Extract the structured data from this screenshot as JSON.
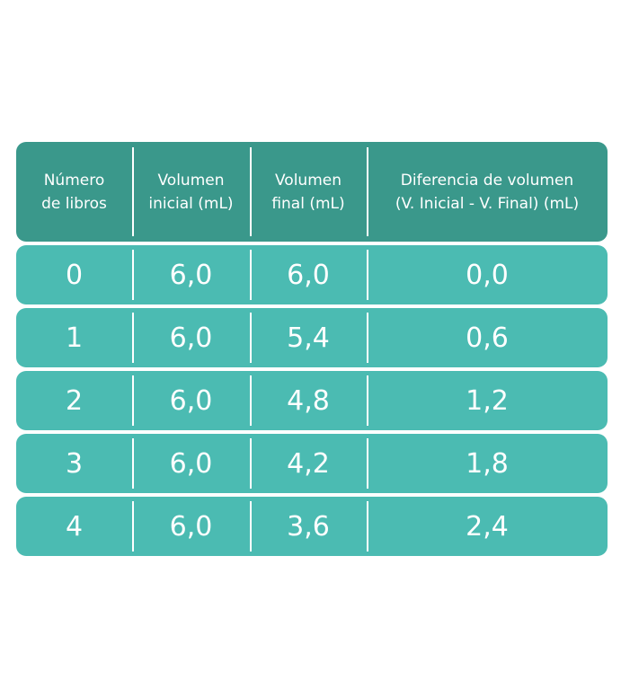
{
  "chart_data": {
    "type": "table",
    "columns": [
      "Número\nde libros",
      "Volumen\ninicial (mL)",
      "Volumen\nfinal (mL)",
      "Diferencia de volumen\n(V. Inicial - V. Final) (mL)"
    ],
    "rows": [
      [
        "0",
        "6,0",
        "6,0",
        "0,0"
      ],
      [
        "1",
        "6,0",
        "5,4",
        "0,6"
      ],
      [
        "2",
        "6,0",
        "4,8",
        "1,2"
      ],
      [
        "3",
        "6,0",
        "4,2",
        "1,8"
      ],
      [
        "4",
        "6,0",
        "3,6",
        "2,4"
      ]
    ]
  },
  "colors": {
    "header_bg": "#3a988b",
    "row_bg": "#4bbbb2",
    "text": "#ffffff",
    "divider": "#ffffff"
  }
}
